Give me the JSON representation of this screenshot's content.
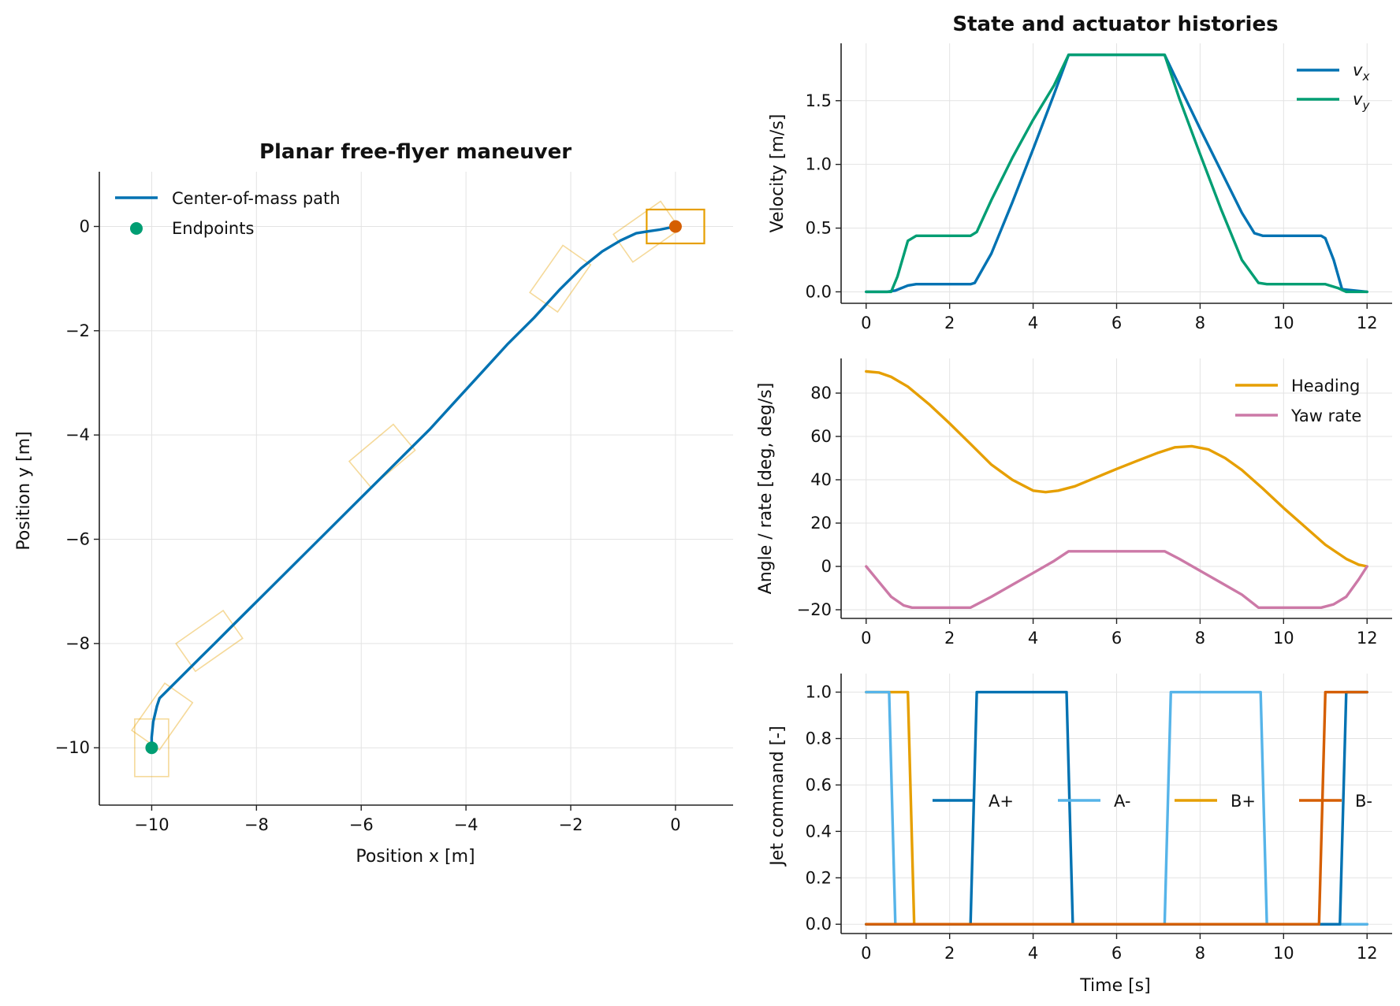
{
  "colors": {
    "blue": "#0072b2",
    "green": "#009e73",
    "orange": "#e69f00",
    "vermillion": "#d55e00",
    "skyblue": "#56b4e9",
    "pink": "#cc79a7"
  },
  "chart_data": [
    {
      "type": "line",
      "title": "Planar free-flyer maneuver",
      "xlabel": "Position x [m]",
      "ylabel": "Position y [m]",
      "xlim": [
        -11,
        1.1
      ],
      "ylim": [
        -11.1,
        1.05
      ],
      "xticks": [
        -10,
        -8,
        -6,
        -4,
        -2,
        0
      ],
      "yticks": [
        -10,
        -8,
        -6,
        -4,
        -2,
        0
      ],
      "xtick_labels": [
        "−10",
        "−8",
        "−6",
        "−4",
        "−2",
        "0"
      ],
      "ytick_labels": [
        "−10",
        "−8",
        "−6",
        "−4",
        "−2",
        "0"
      ],
      "grid": true,
      "legend_position": "top-left",
      "series": [
        {
          "name": "Center-of-mass path",
          "x": [
            -10.0,
            -10.0,
            -9.97,
            -9.9,
            -9.85,
            -9.75,
            -9.6,
            -9.4,
            -9.1,
            -8.8,
            -8.5,
            -8.1,
            -7.7,
            -7.2,
            -6.7,
            -6.2,
            -5.7,
            -5.2,
            -4.7,
            -4.2,
            -3.7,
            -3.2,
            -2.7,
            -2.2,
            -1.8,
            -1.4,
            -1.05,
            -0.75,
            -0.5,
            -0.3,
            -0.15,
            0.0
          ],
          "y": [
            -10.0,
            -9.8,
            -9.5,
            -9.2,
            -9.05,
            -8.95,
            -8.8,
            -8.6,
            -8.3,
            -8.0,
            -7.7,
            -7.3,
            -6.9,
            -6.4,
            -5.9,
            -5.4,
            -4.9,
            -4.4,
            -3.9,
            -3.35,
            -2.8,
            -2.25,
            -1.75,
            -1.2,
            -0.8,
            -0.48,
            -0.27,
            -0.13,
            -0.09,
            -0.06,
            -0.03,
            0.0
          ]
        },
        {
          "name": "Endpoints",
          "x": [
            -10.0,
            0.0
          ],
          "y": [
            -10.0,
            0.0
          ]
        }
      ],
      "body_outlines": [
        {
          "x": -10.0,
          "y": -10.0,
          "heading_deg": 90,
          "highlight": false
        },
        {
          "x": -9.8,
          "y": -9.4,
          "heading_deg": 55,
          "highlight": false
        },
        {
          "x": -8.9,
          "y": -7.95,
          "heading_deg": 35,
          "highlight": false
        },
        {
          "x": -5.6,
          "y": -4.4,
          "heading_deg": 40,
          "highlight": false
        },
        {
          "x": -2.2,
          "y": -1.0,
          "heading_deg": 55,
          "highlight": false
        },
        {
          "x": -0.55,
          "y": -0.1,
          "heading_deg": 35,
          "highlight": false
        },
        {
          "x": 0.0,
          "y": 0.0,
          "heading_deg": 0,
          "highlight": true
        }
      ],
      "body_size_m": [
        1.1,
        0.65
      ]
    },
    {
      "type": "line",
      "suptitle": "State and actuator histories",
      "ylabel": "Velocity [m/s]",
      "xlim": [
        -0.6,
        12.6
      ],
      "ylim": [
        -0.09,
        1.95
      ],
      "xticks": [
        0,
        2,
        4,
        6,
        8,
        10,
        12
      ],
      "yticks": [
        0.0,
        0.5,
        1.0,
        1.5
      ],
      "xtick_labels": [
        "0",
        "2",
        "4",
        "6",
        "8",
        "10",
        "12"
      ],
      "ytick_labels": [
        "0.0",
        "0.5",
        "1.0",
        "1.5"
      ],
      "grid": true,
      "legend_position": "top-right",
      "series": [
        {
          "name": "v_x",
          "x": [
            0,
            0.5,
            0.7,
            1.0,
            1.2,
            2.5,
            2.6,
            3.0,
            3.5,
            4.0,
            4.5,
            4.85,
            7.15,
            7.5,
            8.0,
            8.5,
            9.0,
            9.3,
            9.5,
            10.9,
            11.0,
            11.2,
            11.4,
            12.0
          ],
          "y": [
            0,
            0,
            0.01,
            0.05,
            0.06,
            0.06,
            0.07,
            0.3,
            0.7,
            1.12,
            1.55,
            1.86,
            1.86,
            1.62,
            1.28,
            0.95,
            0.62,
            0.46,
            0.44,
            0.44,
            0.42,
            0.25,
            0.02,
            0
          ]
        },
        {
          "name": "v_y",
          "x": [
            0,
            0.6,
            0.75,
            1.0,
            1.2,
            2.5,
            2.65,
            3.0,
            3.5,
            4.0,
            4.5,
            4.85,
            7.15,
            7.5,
            8.0,
            8.5,
            9.0,
            9.4,
            9.6,
            10.8,
            11.0,
            11.3,
            11.5,
            12.0
          ],
          "y": [
            0,
            0,
            0.12,
            0.4,
            0.44,
            0.44,
            0.47,
            0.72,
            1.05,
            1.35,
            1.62,
            1.86,
            1.86,
            1.52,
            1.08,
            0.65,
            0.25,
            0.07,
            0.06,
            0.06,
            0.06,
            0.03,
            0,
            0
          ]
        }
      ],
      "legend_labels": [
        {
          "main": "v",
          "sub": "x"
        },
        {
          "main": "v",
          "sub": "y"
        }
      ]
    },
    {
      "type": "line",
      "ylabel": "Angle / rate [deg, deg/s]",
      "xlim": [
        -0.6,
        12.6
      ],
      "ylim": [
        -24,
        96
      ],
      "xticks": [
        0,
        2,
        4,
        6,
        8,
        10,
        12
      ],
      "yticks": [
        -20,
        0,
        20,
        40,
        60,
        80
      ],
      "xtick_labels": [
        "0",
        "2",
        "4",
        "6",
        "8",
        "10",
        "12"
      ],
      "ytick_labels": [
        "−20",
        "0",
        "20",
        "40",
        "60",
        "80"
      ],
      "grid": true,
      "legend_position": "top-right",
      "series": [
        {
          "name": "Heading",
          "x": [
            0,
            0.3,
            0.6,
            1.0,
            1.5,
            2.0,
            2.5,
            3.0,
            3.5,
            4.0,
            4.3,
            4.6,
            5.0,
            5.5,
            6.0,
            6.5,
            7.0,
            7.4,
            7.8,
            8.2,
            8.6,
            9.0,
            9.5,
            10.0,
            10.5,
            11.0,
            11.5,
            11.8,
            12.0
          ],
          "y": [
            90,
            89.5,
            87.5,
            83,
            75,
            66,
            56.5,
            47,
            40,
            35,
            34.3,
            35,
            37,
            41,
            45,
            48.8,
            52.5,
            55,
            55.5,
            54,
            50,
            44.5,
            36,
            27,
            18.5,
            10,
            3.5,
            0.8,
            0
          ]
        },
        {
          "name": "Yaw rate",
          "x": [
            0,
            0.3,
            0.6,
            0.9,
            1.1,
            2.5,
            3.0,
            3.5,
            4.0,
            4.5,
            4.85,
            7.15,
            7.5,
            8.0,
            8.5,
            9.0,
            9.4,
            10.9,
            11.2,
            11.5,
            11.8,
            12.0
          ],
          "y": [
            0,
            -7,
            -14,
            -18,
            -19,
            -19,
            -14,
            -8.5,
            -3,
            2.5,
            7,
            7,
            3.5,
            -2,
            -7.5,
            -13,
            -19,
            -19,
            -17.5,
            -14,
            -6,
            0
          ]
        }
      ]
    },
    {
      "type": "line",
      "xlabel": "Time [s]",
      "ylabel": "Jet command [-]",
      "xlim": [
        -0.6,
        12.6
      ],
      "ylim": [
        -0.04,
        1.08
      ],
      "xticks": [
        0,
        2,
        4,
        6,
        8,
        10,
        12
      ],
      "yticks": [
        0.0,
        0.2,
        0.4,
        0.6,
        0.8,
        1.0
      ],
      "xtick_labels": [
        "0",
        "2",
        "4",
        "6",
        "8",
        "10",
        "12"
      ],
      "ytick_labels": [
        "0.0",
        "0.2",
        "0.4",
        "0.6",
        "0.8",
        "1.0"
      ],
      "grid": true,
      "legend_position": "center, single row",
      "series": [
        {
          "name": "A+",
          "x": [
            0,
            2.5,
            2.65,
            4.8,
            4.95,
            11.35,
            11.5,
            12.0
          ],
          "y": [
            0,
            0,
            1,
            1,
            0,
            0,
            1,
            1
          ]
        },
        {
          "name": "A-",
          "x": [
            0,
            0.55,
            0.7,
            12.0
          ],
          "y": [
            1,
            1,
            0,
            0
          ],
          "x2": [
            0,
            7.15,
            7.3,
            9.45,
            9.6,
            12.0
          ],
          "y2": [
            0,
            0,
            1,
            1,
            0,
            0
          ]
        },
        {
          "name": "B+",
          "x": [
            0,
            1.0,
            1.15,
            12.0
          ],
          "y": [
            1,
            1,
            0,
            0
          ]
        },
        {
          "name": "B-",
          "x": [
            0,
            10.85,
            11.0,
            12.0
          ],
          "y": [
            0,
            0,
            1,
            1
          ]
        }
      ]
    }
  ]
}
